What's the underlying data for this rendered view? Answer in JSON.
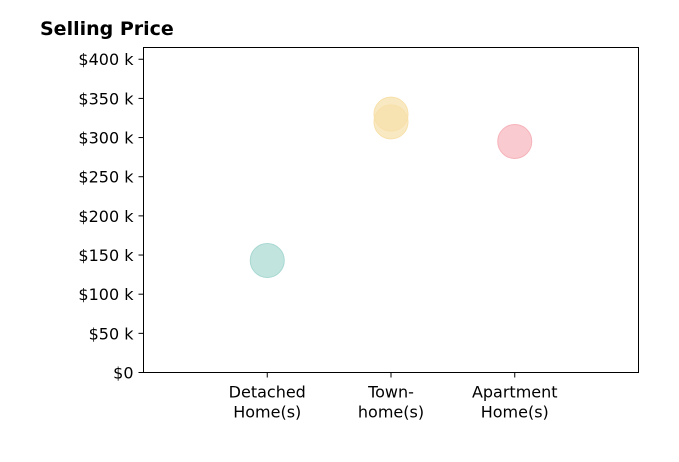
{
  "chart_data": {
    "type": "scatter",
    "title": "Selling Price",
    "xlabel": "",
    "ylabel": "",
    "categories": [
      [
        "Detached",
        "Home(s)"
      ],
      [
        "Town-",
        "home(s)"
      ],
      [
        "Apartment",
        "Home(s)"
      ]
    ],
    "yticks": [
      0,
      50,
      100,
      150,
      200,
      250,
      300,
      350,
      400
    ],
    "ytick_labels": [
      "$0",
      "$50 k",
      "$100 k",
      "$150 k",
      "$200 k",
      "$250 k",
      "$300 k",
      "$350 k",
      "$400 k"
    ],
    "ylim": [
      0,
      415
    ],
    "xlim": [
      -1,
      3
    ],
    "grid": false,
    "points": [
      {
        "category": 0,
        "value": 143,
        "color": "#a8d8d2"
      },
      {
        "category": 1,
        "value": 330,
        "color": "#f7e0aa"
      },
      {
        "category": 1,
        "value": 320,
        "color": "#f7e0aa"
      },
      {
        "category": 2,
        "value": 295,
        "color": "#f6b3bb"
      }
    ]
  }
}
